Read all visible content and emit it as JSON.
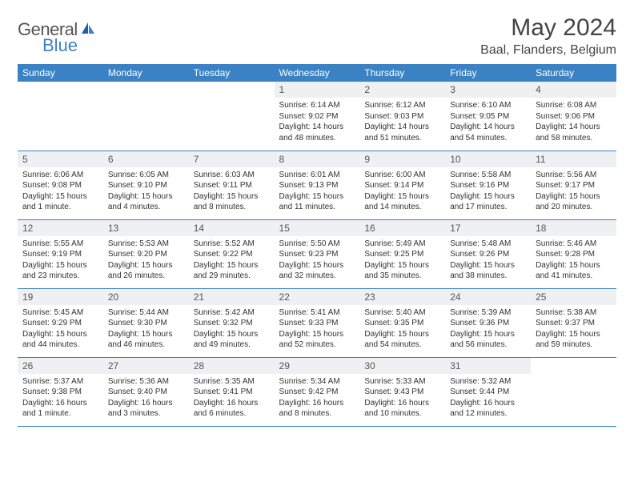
{
  "brand": {
    "text1": "General",
    "text2": "Blue"
  },
  "title": "May 2024",
  "location": "Baal, Flanders, Belgium",
  "colors": {
    "header_bg": "#3b82c4",
    "header_text": "#ffffff",
    "daynum_bg": "#eef0f2",
    "border": "#3b82c4",
    "body_text": "#333333",
    "title_text": "#444444"
  },
  "dow": [
    "Sunday",
    "Monday",
    "Tuesday",
    "Wednesday",
    "Thursday",
    "Friday",
    "Saturday"
  ],
  "weeks": [
    [
      {
        "n": "",
        "sr": "",
        "ss": "",
        "dl": ""
      },
      {
        "n": "",
        "sr": "",
        "ss": "",
        "dl": ""
      },
      {
        "n": "",
        "sr": "",
        "ss": "",
        "dl": ""
      },
      {
        "n": "1",
        "sr": "Sunrise: 6:14 AM",
        "ss": "Sunset: 9:02 PM",
        "dl": "Daylight: 14 hours and 48 minutes."
      },
      {
        "n": "2",
        "sr": "Sunrise: 6:12 AM",
        "ss": "Sunset: 9:03 PM",
        "dl": "Daylight: 14 hours and 51 minutes."
      },
      {
        "n": "3",
        "sr": "Sunrise: 6:10 AM",
        "ss": "Sunset: 9:05 PM",
        "dl": "Daylight: 14 hours and 54 minutes."
      },
      {
        "n": "4",
        "sr": "Sunrise: 6:08 AM",
        "ss": "Sunset: 9:06 PM",
        "dl": "Daylight: 14 hours and 58 minutes."
      }
    ],
    [
      {
        "n": "5",
        "sr": "Sunrise: 6:06 AM",
        "ss": "Sunset: 9:08 PM",
        "dl": "Daylight: 15 hours and 1 minute."
      },
      {
        "n": "6",
        "sr": "Sunrise: 6:05 AM",
        "ss": "Sunset: 9:10 PM",
        "dl": "Daylight: 15 hours and 4 minutes."
      },
      {
        "n": "7",
        "sr": "Sunrise: 6:03 AM",
        "ss": "Sunset: 9:11 PM",
        "dl": "Daylight: 15 hours and 8 minutes."
      },
      {
        "n": "8",
        "sr": "Sunrise: 6:01 AM",
        "ss": "Sunset: 9:13 PM",
        "dl": "Daylight: 15 hours and 11 minutes."
      },
      {
        "n": "9",
        "sr": "Sunrise: 6:00 AM",
        "ss": "Sunset: 9:14 PM",
        "dl": "Daylight: 15 hours and 14 minutes."
      },
      {
        "n": "10",
        "sr": "Sunrise: 5:58 AM",
        "ss": "Sunset: 9:16 PM",
        "dl": "Daylight: 15 hours and 17 minutes."
      },
      {
        "n": "11",
        "sr": "Sunrise: 5:56 AM",
        "ss": "Sunset: 9:17 PM",
        "dl": "Daylight: 15 hours and 20 minutes."
      }
    ],
    [
      {
        "n": "12",
        "sr": "Sunrise: 5:55 AM",
        "ss": "Sunset: 9:19 PM",
        "dl": "Daylight: 15 hours and 23 minutes."
      },
      {
        "n": "13",
        "sr": "Sunrise: 5:53 AM",
        "ss": "Sunset: 9:20 PM",
        "dl": "Daylight: 15 hours and 26 minutes."
      },
      {
        "n": "14",
        "sr": "Sunrise: 5:52 AM",
        "ss": "Sunset: 9:22 PM",
        "dl": "Daylight: 15 hours and 29 minutes."
      },
      {
        "n": "15",
        "sr": "Sunrise: 5:50 AM",
        "ss": "Sunset: 9:23 PM",
        "dl": "Daylight: 15 hours and 32 minutes."
      },
      {
        "n": "16",
        "sr": "Sunrise: 5:49 AM",
        "ss": "Sunset: 9:25 PM",
        "dl": "Daylight: 15 hours and 35 minutes."
      },
      {
        "n": "17",
        "sr": "Sunrise: 5:48 AM",
        "ss": "Sunset: 9:26 PM",
        "dl": "Daylight: 15 hours and 38 minutes."
      },
      {
        "n": "18",
        "sr": "Sunrise: 5:46 AM",
        "ss": "Sunset: 9:28 PM",
        "dl": "Daylight: 15 hours and 41 minutes."
      }
    ],
    [
      {
        "n": "19",
        "sr": "Sunrise: 5:45 AM",
        "ss": "Sunset: 9:29 PM",
        "dl": "Daylight: 15 hours and 44 minutes."
      },
      {
        "n": "20",
        "sr": "Sunrise: 5:44 AM",
        "ss": "Sunset: 9:30 PM",
        "dl": "Daylight: 15 hours and 46 minutes."
      },
      {
        "n": "21",
        "sr": "Sunrise: 5:42 AM",
        "ss": "Sunset: 9:32 PM",
        "dl": "Daylight: 15 hours and 49 minutes."
      },
      {
        "n": "22",
        "sr": "Sunrise: 5:41 AM",
        "ss": "Sunset: 9:33 PM",
        "dl": "Daylight: 15 hours and 52 minutes."
      },
      {
        "n": "23",
        "sr": "Sunrise: 5:40 AM",
        "ss": "Sunset: 9:35 PM",
        "dl": "Daylight: 15 hours and 54 minutes."
      },
      {
        "n": "24",
        "sr": "Sunrise: 5:39 AM",
        "ss": "Sunset: 9:36 PM",
        "dl": "Daylight: 15 hours and 56 minutes."
      },
      {
        "n": "25",
        "sr": "Sunrise: 5:38 AM",
        "ss": "Sunset: 9:37 PM",
        "dl": "Daylight: 15 hours and 59 minutes."
      }
    ],
    [
      {
        "n": "26",
        "sr": "Sunrise: 5:37 AM",
        "ss": "Sunset: 9:38 PM",
        "dl": "Daylight: 16 hours and 1 minute."
      },
      {
        "n": "27",
        "sr": "Sunrise: 5:36 AM",
        "ss": "Sunset: 9:40 PM",
        "dl": "Daylight: 16 hours and 3 minutes."
      },
      {
        "n": "28",
        "sr": "Sunrise: 5:35 AM",
        "ss": "Sunset: 9:41 PM",
        "dl": "Daylight: 16 hours and 6 minutes."
      },
      {
        "n": "29",
        "sr": "Sunrise: 5:34 AM",
        "ss": "Sunset: 9:42 PM",
        "dl": "Daylight: 16 hours and 8 minutes."
      },
      {
        "n": "30",
        "sr": "Sunrise: 5:33 AM",
        "ss": "Sunset: 9:43 PM",
        "dl": "Daylight: 16 hours and 10 minutes."
      },
      {
        "n": "31",
        "sr": "Sunrise: 5:32 AM",
        "ss": "Sunset: 9:44 PM",
        "dl": "Daylight: 16 hours and 12 minutes."
      },
      {
        "n": "",
        "sr": "",
        "ss": "",
        "dl": ""
      }
    ]
  ]
}
